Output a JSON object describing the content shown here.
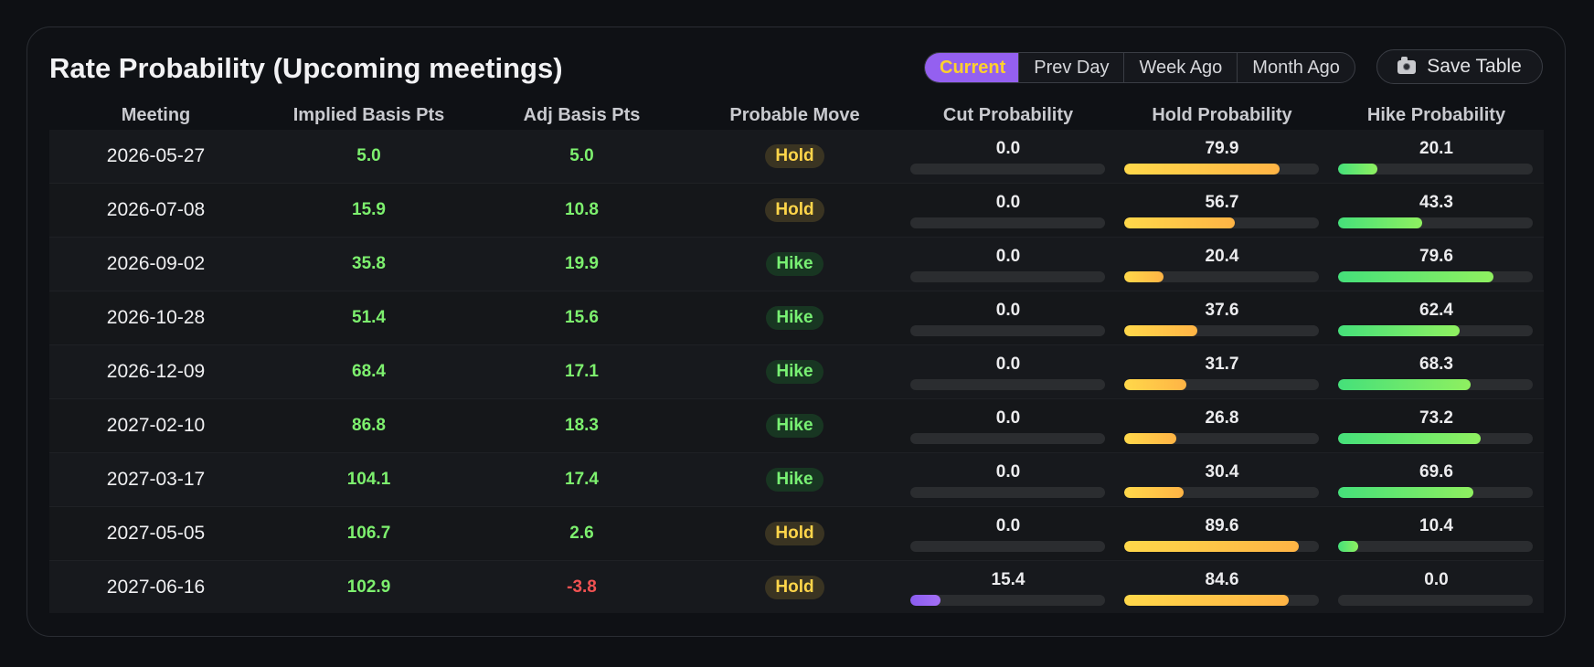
{
  "title": "Rate Probability (Upcoming meetings)",
  "segments": [
    "Current",
    "Prev Day",
    "Week Ago",
    "Month Ago"
  ],
  "active_segment": "Current",
  "save_label": "Save Table",
  "save_icon": "camera-icon",
  "colors": {
    "positive": "#7df06e",
    "negative": "#f25252",
    "hold": "#ffd54a",
    "hike": "#78f073",
    "cut": "#9460f0"
  },
  "columns": [
    "Meeting",
    "Implied Basis Pts",
    "Adj Basis Pts",
    "Probable Move",
    "Cut Probability",
    "Hold Probability",
    "Hike Probability"
  ],
  "rows": [
    {
      "meeting": "2026-05-27",
      "implied": "5.0",
      "adj": "5.0",
      "move": "Hold",
      "cut": "0.0",
      "hold": "79.9",
      "hike": "20.1"
    },
    {
      "meeting": "2026-07-08",
      "implied": "15.9",
      "adj": "10.8",
      "move": "Hold",
      "cut": "0.0",
      "hold": "56.7",
      "hike": "43.3"
    },
    {
      "meeting": "2026-09-02",
      "implied": "35.8",
      "adj": "19.9",
      "move": "Hike",
      "cut": "0.0",
      "hold": "20.4",
      "hike": "79.6"
    },
    {
      "meeting": "2026-10-28",
      "implied": "51.4",
      "adj": "15.6",
      "move": "Hike",
      "cut": "0.0",
      "hold": "37.6",
      "hike": "62.4"
    },
    {
      "meeting": "2026-12-09",
      "implied": "68.4",
      "adj": "17.1",
      "move": "Hike",
      "cut": "0.0",
      "hold": "31.7",
      "hike": "68.3"
    },
    {
      "meeting": "2027-02-10",
      "implied": "86.8",
      "adj": "18.3",
      "move": "Hike",
      "cut": "0.0",
      "hold": "26.8",
      "hike": "73.2"
    },
    {
      "meeting": "2027-03-17",
      "implied": "104.1",
      "adj": "17.4",
      "move": "Hike",
      "cut": "0.0",
      "hold": "30.4",
      "hike": "69.6"
    },
    {
      "meeting": "2027-05-05",
      "implied": "106.7",
      "adj": "2.6",
      "move": "Hold",
      "cut": "0.0",
      "hold": "89.6",
      "hike": "10.4"
    },
    {
      "meeting": "2027-06-16",
      "implied": "102.9",
      "adj": "-3.8",
      "move": "Hold",
      "cut": "15.4",
      "hold": "84.6",
      "hike": "0.0"
    }
  ]
}
